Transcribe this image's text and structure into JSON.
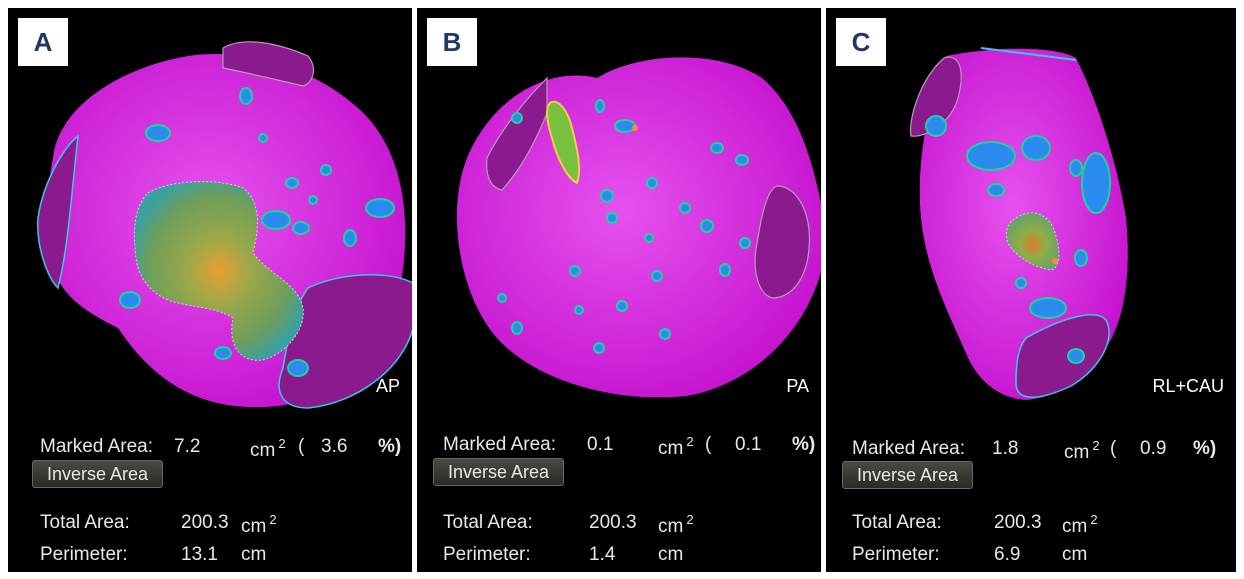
{
  "panels": [
    {
      "letter": "A",
      "view_label": "AP",
      "marked_area_label": "Marked Area:",
      "marked_area_value": "7.2",
      "marked_area_unit": "cm",
      "marked_area_percent_open": "(",
      "marked_area_percent": "3.6",
      "percent_symbol": "%)",
      "inverse_button": "Inverse Area",
      "total_area_label": "Total Area:",
      "total_area_value": "200.3",
      "total_area_unit": "cm",
      "perimeter_label": "Perimeter:",
      "perimeter_value": "13.1",
      "perimeter_unit": "cm"
    },
    {
      "letter": "B",
      "view_label": "PA",
      "marked_area_label": "Marked Area:",
      "marked_area_value": "0.1",
      "marked_area_unit": "cm",
      "marked_area_percent_open": "(",
      "marked_area_percent": "0.1",
      "percent_symbol": "%)",
      "inverse_button": "Inverse Area",
      "total_area_label": "Total Area:",
      "total_area_value": "200.3",
      "total_area_unit": "cm",
      "perimeter_label": "Perimeter:",
      "perimeter_value": "1.4",
      "perimeter_unit": "cm"
    },
    {
      "letter": "C",
      "view_label": "RL+CAU",
      "marked_area_label": "Marked Area:",
      "marked_area_value": "1.8",
      "marked_area_unit": "cm",
      "marked_area_percent_open": "(",
      "marked_area_percent": "0.9",
      "percent_symbol": "%)",
      "inverse_button": "Inverse Area",
      "total_area_label": "Total Area:",
      "total_area_value": "200.3",
      "total_area_unit": "cm",
      "perimeter_label": "Perimeter:",
      "perimeter_value": "6.9",
      "perimeter_unit": "cm"
    }
  ],
  "superscript": "2",
  "colors": {
    "chamber": "#d61fe0",
    "scar_green": "#6fa64a",
    "scar_core": "#e07a2c",
    "border_zone": "#2b8cf0",
    "valve_outline": "#38c8e0",
    "panel_bg": "#000000",
    "letter_text": "#1f3864"
  }
}
